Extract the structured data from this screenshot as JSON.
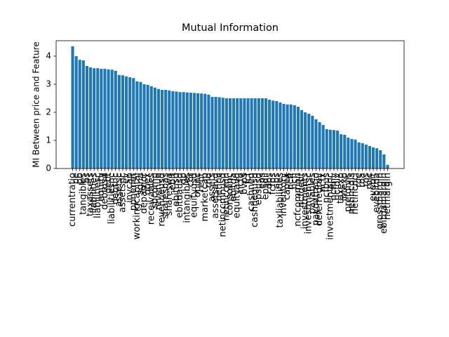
{
  "chart_data": {
    "type": "bar",
    "title": "Mutual Information",
    "y_label": "MI Between price and Feature",
    "color": "#1f77b4",
    "categories": [
      "currentratio",
      "pe",
      "pb",
      "tangibles",
      "ps",
      "taxassets",
      "liabilities",
      "liabilitiesc",
      "equity",
      "debtusd",
      "debt",
      "liabilitiesnc",
      "debtnc",
      "assetsc",
      "assetsnc",
      "ev",
      "invcap",
      "ppnenet",
      "workingcapital",
      "sgna",
      "depamor",
      "opex",
      "receivables",
      "sbcomp",
      "revenue",
      "revenueusd",
      "sharesbas",
      "shareswa",
      "ebit",
      "ebitusd",
      "ebitdausd",
      "gp",
      "intangibles",
      "cor",
      "equityusd",
      "opinc",
      "ebt",
      "marketcap",
      "rnd",
      "assets",
      "assetsavg",
      "netinc",
      "netinccmnusd",
      "netinccmn",
      "consolinc",
      "ebitda",
      "equityavg",
      "ncfo",
      "bvps",
      "fcf",
      "cashneq",
      "cashnequsd",
      "epsusd",
      "eps",
      "epsdil",
      "dps",
      "fcfps",
      "sps",
      "taxliabilities",
      "inventory",
      "capex",
      "ncff",
      "ncfi",
      "ncfcommon",
      "ncfdebt",
      "investments",
      "investmentsc",
      "payables",
      "payoutratio",
      "deferredrev",
      "ncfx",
      "ncfbus",
      "investmentsnc",
      "ncfinv",
      "ncfdiv",
      "taxexp",
      "intexp",
      "prefdivis",
      "netincdis",
      "netincnci",
      "roe",
      "roa",
      "ros",
      "roic",
      "evebit",
      "evebitda",
      "grossmargin",
      "ebitdamargin",
      "netmargin"
    ],
    "values": [
      4.35,
      4.0,
      3.87,
      3.85,
      3.65,
      3.6,
      3.57,
      3.57,
      3.55,
      3.55,
      3.53,
      3.52,
      3.48,
      3.33,
      3.32,
      3.28,
      3.25,
      3.22,
      3.1,
      3.08,
      3.0,
      2.98,
      2.93,
      2.88,
      2.83,
      2.8,
      2.8,
      2.78,
      2.75,
      2.74,
      2.72,
      2.72,
      2.71,
      2.7,
      2.69,
      2.68,
      2.67,
      2.66,
      2.63,
      2.55,
      2.55,
      2.54,
      2.52,
      2.5,
      2.5,
      2.5,
      2.5,
      2.5,
      2.5,
      2.5,
      2.5,
      2.5,
      2.5,
      2.5,
      2.5,
      2.45,
      2.42,
      2.4,
      2.35,
      2.3,
      2.28,
      2.28,
      2.25,
      2.2,
      2.08,
      2.0,
      1.95,
      1.88,
      1.75,
      1.65,
      1.55,
      1.4,
      1.38,
      1.37,
      1.35,
      1.22,
      1.2,
      1.1,
      1.05,
      1.03,
      0.93,
      0.9,
      0.85,
      0.8,
      0.75,
      0.72,
      0.65,
      0.5,
      0.13
    ],
    "ylim": [
      0,
      4.55
    ],
    "yticks": [
      0,
      1,
      2,
      3,
      4
    ]
  }
}
